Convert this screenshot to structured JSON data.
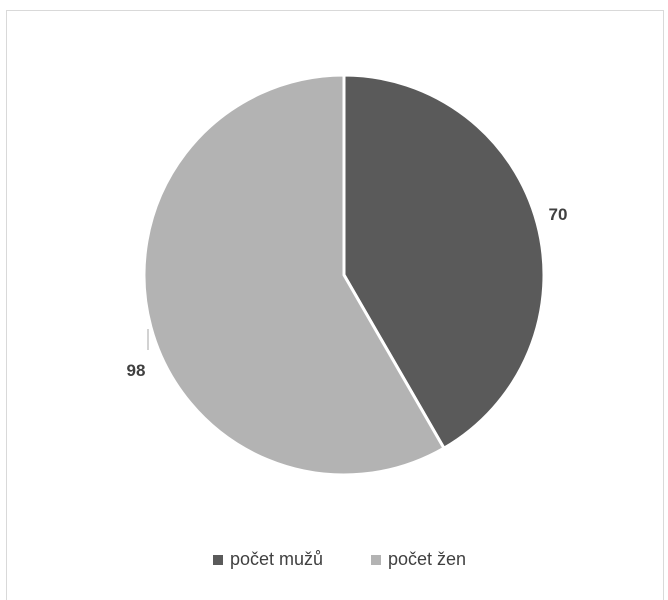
{
  "chart_data": {
    "type": "pie",
    "title": "",
    "categories": [
      "počet mužů",
      "počet žen"
    ],
    "values": [
      70,
      98
    ],
    "colors": [
      "#5a5a5a",
      "#b3b3b3"
    ],
    "data_labels": [
      "70",
      "98"
    ],
    "legend": {
      "position": "bottom",
      "entries": [
        "počet mužů",
        "počet žen"
      ]
    }
  }
}
